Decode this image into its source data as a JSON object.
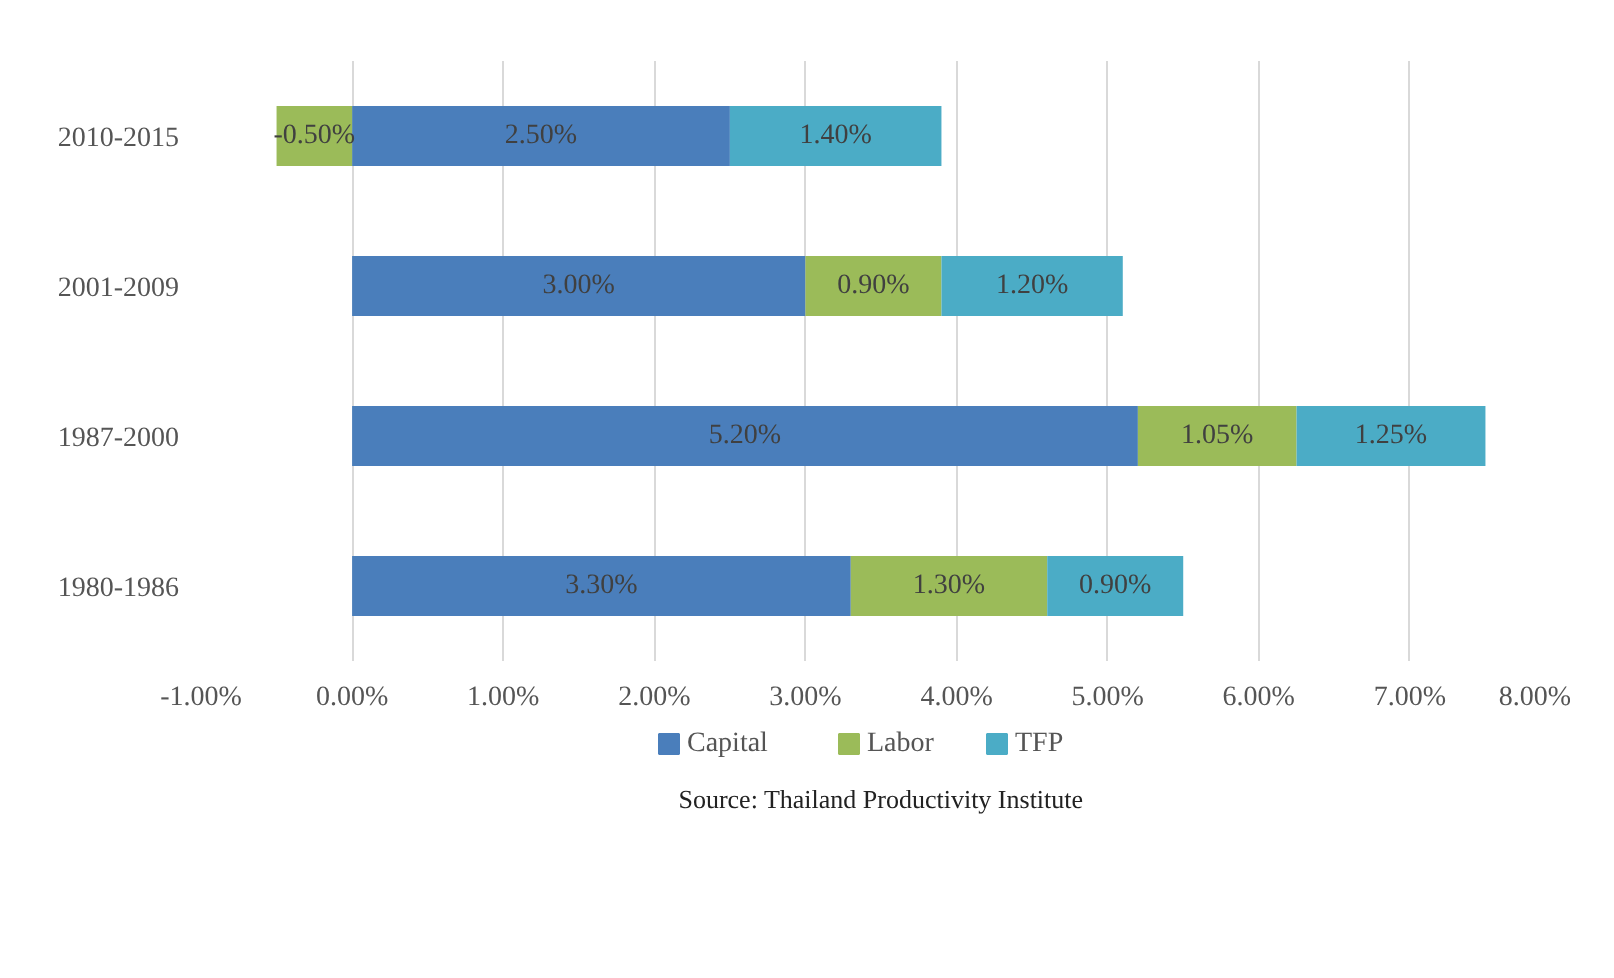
{
  "chart_data": {
    "type": "bar",
    "orientation": "horizontal",
    "stacked": true,
    "categories": [
      "2010-2015",
      "2001-2009",
      "1987-2000",
      "1980-1986"
    ],
    "series": [
      {
        "name": "Capital",
        "color": "#4a7ebb",
        "values": [
          2.5,
          3.0,
          5.2,
          3.3
        ],
        "value_labels": [
          "2.50%",
          "3.00%",
          "5.20%",
          "3.30%"
        ]
      },
      {
        "name": "Labor",
        "color": "#9bbb59",
        "values": [
          -0.5,
          0.9,
          1.05,
          1.3
        ],
        "value_labels": [
          "-0.50%",
          "0.90%",
          "1.05%",
          "1.30%"
        ]
      },
      {
        "name": "TFP",
        "color": "#4bacc6",
        "values": [
          1.4,
          1.2,
          1.25,
          0.9
        ],
        "value_labels": [
          "1.40%",
          "1.20%",
          "1.25%",
          "0.90%"
        ]
      }
    ],
    "xlim": [
      -1,
      8
    ],
    "xticks": [
      {
        "value": -1,
        "label": "-1.00%"
      },
      {
        "value": 0,
        "label": "0.00%"
      },
      {
        "value": 1,
        "label": "1.00%"
      },
      {
        "value": 2,
        "label": "2.00%"
      },
      {
        "value": 3,
        "label": "3.00%"
      },
      {
        "value": 4,
        "label": "4.00%"
      },
      {
        "value": 5,
        "label": "5.00%"
      },
      {
        "value": 6,
        "label": "6.00%"
      },
      {
        "value": 7,
        "label": "7.00%"
      },
      {
        "value": 8,
        "label": "8.00%"
      }
    ],
    "grid": "x",
    "legend": "bottom",
    "annotations": [
      "Source: Thailand Productivity Institute"
    ]
  }
}
